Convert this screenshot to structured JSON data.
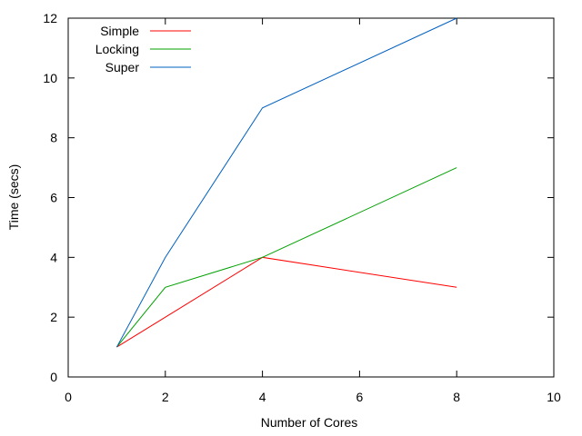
{
  "chart_data": {
    "type": "line",
    "xlabel": "Number of Cores",
    "ylabel": "Time (secs)",
    "xlim": [
      0,
      10
    ],
    "ylim": [
      0,
      12
    ],
    "xticks": [
      0,
      2,
      4,
      6,
      8,
      10
    ],
    "yticks": [
      0,
      2,
      4,
      6,
      8,
      10,
      12
    ],
    "grid": false,
    "legend_position": "top-left",
    "x": [
      1,
      2,
      4,
      8
    ],
    "series": [
      {
        "name": "Simple",
        "color": "#ff0000",
        "values": [
          1,
          2,
          4,
          3
        ]
      },
      {
        "name": "Locking",
        "color": "#00a000",
        "values": [
          1,
          3,
          4,
          7
        ]
      },
      {
        "name": "Super",
        "color": "#0060c0",
        "values": [
          1,
          4,
          9,
          12
        ]
      }
    ]
  }
}
